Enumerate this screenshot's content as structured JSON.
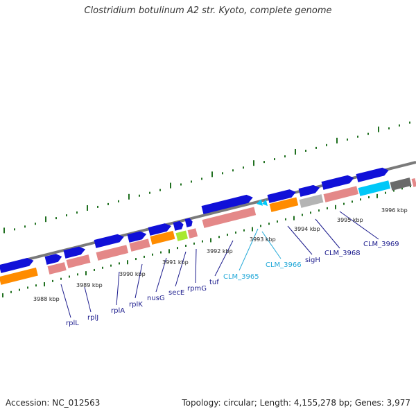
{
  "title": "Clostridium botulinum A2 str. Kyoto, complete genome",
  "footer": {
    "accession": "Accession: NC_012563",
    "summary": "Topology: circular; Length: 4,155,278 bp; Genes: 3,977"
  },
  "colors": {
    "backbone": "#7a7a7a",
    "cds": "#1010d8",
    "rna_pink": "#e48888",
    "orange": "#ff8c00",
    "green_feature": "#a8e830",
    "gray_feature": "#b4b4b4",
    "dark_gray_feature": "#6a6a6a",
    "cyan_feature": "#00c8f8",
    "tick": "#207020",
    "label_dark": "#1a1a8c",
    "label_cyan": "#20a8d8"
  },
  "kbp_labels": [
    "3988 kbp",
    "3989 kbp",
    "3990 kbp",
    "3991 kbp",
    "3992 kbp",
    "3993 kbp",
    "3994 kbp",
    "3995 kbp",
    "3996 kbp"
  ],
  "gene_labels": [
    {
      "text": "rplL",
      "color": "dark"
    },
    {
      "text": "rplJ",
      "color": "dark"
    },
    {
      "text": "rplA",
      "color": "dark"
    },
    {
      "text": "rplK",
      "color": "dark"
    },
    {
      "text": "nusG",
      "color": "dark"
    },
    {
      "text": "secE",
      "color": "dark"
    },
    {
      "text": "rpmG",
      "color": "dark"
    },
    {
      "text": "tuf",
      "color": "dark"
    },
    {
      "text": "CLM_3965",
      "color": "cyan"
    },
    {
      "text": "CLM_3966",
      "color": "cyan"
    },
    {
      "text": "sigH",
      "color": "dark"
    },
    {
      "text": "CLM_3968",
      "color": "dark"
    },
    {
      "text": "CLM_3969",
      "color": "dark"
    }
  ],
  "features": [
    {
      "kind": "gene",
      "track": "outer",
      "color": "cds"
    },
    {
      "kind": "gene",
      "track": "outer",
      "color": "cds"
    },
    {
      "kind": "gene",
      "track": "outer",
      "color": "cds"
    },
    {
      "kind": "gene",
      "track": "outer",
      "color": "cds"
    },
    {
      "kind": "gene",
      "track": "outer",
      "color": "cds"
    },
    {
      "kind": "gene",
      "track": "outer",
      "color": "cds"
    },
    {
      "kind": "gene",
      "track": "outer",
      "color": "cds"
    },
    {
      "kind": "gene",
      "track": "outer",
      "color": "cds"
    },
    {
      "kind": "gene",
      "track": "outer",
      "color": "cds"
    },
    {
      "kind": "gene",
      "track": "outer",
      "color": "cds"
    },
    {
      "kind": "gene",
      "track": "outer",
      "color": "cds"
    },
    {
      "kind": "gene",
      "track": "outer",
      "color": "cds"
    },
    {
      "kind": "gene",
      "track": "outer",
      "color": "cds"
    },
    {
      "kind": "gene",
      "track": "outer",
      "color": "cds"
    },
    {
      "kind": "gene",
      "track": "outer",
      "color": "cds"
    },
    {
      "kind": "gene",
      "track": "inner",
      "color": "orange"
    },
    {
      "kind": "gene",
      "track": "inner",
      "color": "rna_pink"
    },
    {
      "kind": "gene",
      "track": "inner",
      "color": "rna_pink"
    },
    {
      "kind": "gene",
      "track": "inner",
      "color": "rna_pink"
    },
    {
      "kind": "gene",
      "track": "inner",
      "color": "rna_pink"
    },
    {
      "kind": "gene",
      "track": "inner",
      "color": "orange"
    },
    {
      "kind": "gene",
      "track": "inner",
      "color": "green_feature"
    },
    {
      "kind": "gene",
      "track": "inner",
      "color": "rna_pink"
    },
    {
      "kind": "gene",
      "track": "inner",
      "color": "rna_pink"
    },
    {
      "kind": "gene",
      "track": "inner",
      "color": "orange"
    },
    {
      "kind": "gene",
      "track": "inner",
      "color": "gray_feature"
    },
    {
      "kind": "gene",
      "track": "inner",
      "color": "rna_pink"
    },
    {
      "kind": "gene",
      "track": "inner",
      "color": "cyan_feature"
    },
    {
      "kind": "gene",
      "track": "inner",
      "color": "dark_gray_feature"
    },
    {
      "kind": "gene",
      "track": "inner",
      "color": "rna_pink"
    }
  ]
}
